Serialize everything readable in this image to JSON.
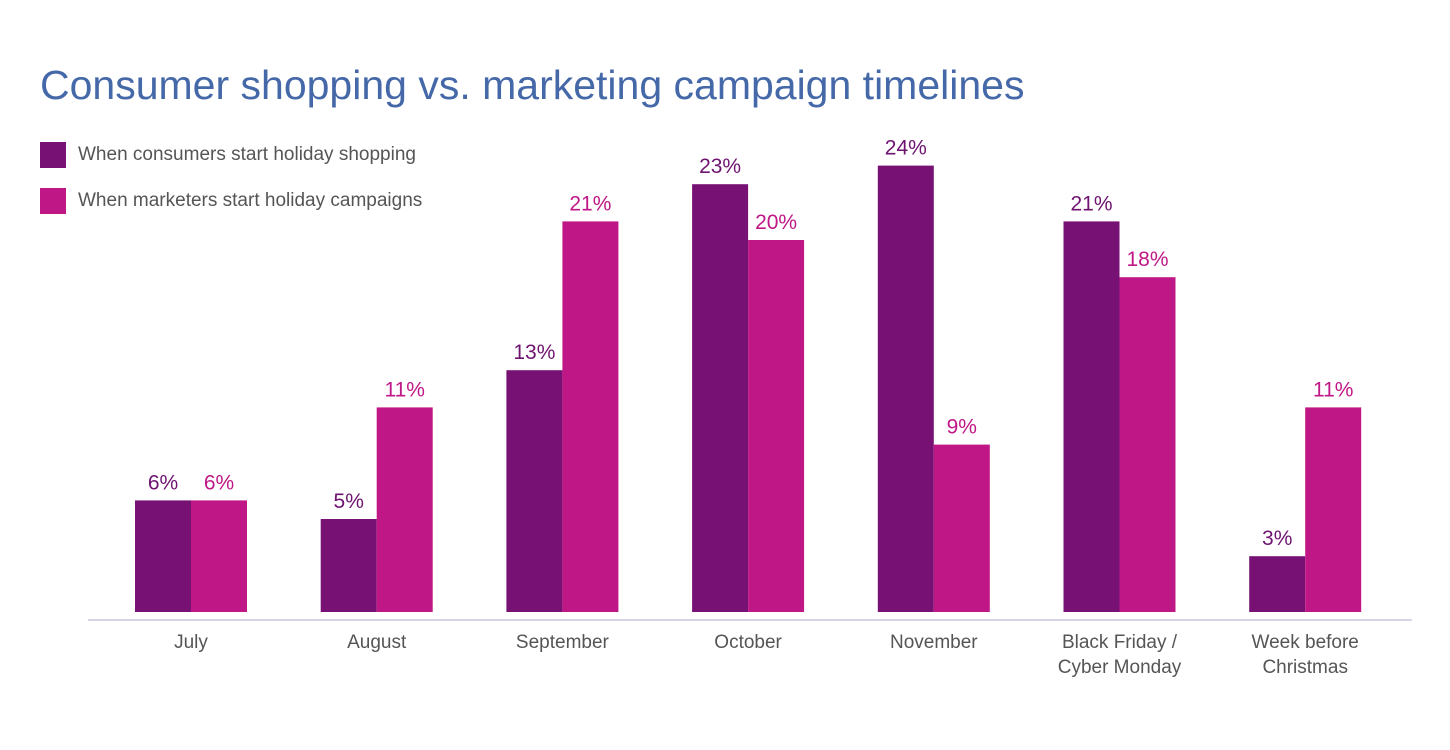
{
  "chart_data": {
    "type": "bar",
    "title": "Consumer shopping vs. marketing campaign timelines",
    "xlabel": "",
    "ylabel": "",
    "ylim": [
      0,
      28
    ],
    "grid": false,
    "legend_position": "top-left",
    "categories": [
      "July",
      "August",
      "September",
      "October",
      "November",
      "Black Friday / Cyber Monday",
      "Week before Christmas"
    ],
    "category_lines": [
      [
        "July"
      ],
      [
        "August"
      ],
      [
        "September"
      ],
      [
        "October"
      ],
      [
        "November"
      ],
      [
        "Black Friday /",
        "Cyber Monday"
      ],
      [
        "Week before",
        "Christmas"
      ]
    ],
    "series": [
      {
        "name": "When consumers start holiday shopping",
        "color": "#771174",
        "label_color": "#6e1370",
        "values": [
          6,
          5,
          13,
          23,
          24,
          21,
          3
        ],
        "labels": [
          "6%",
          "5%",
          "13%",
          "23%",
          "24%",
          "21%",
          "3%"
        ]
      },
      {
        "name": "When marketers start holiday campaigns",
        "color": "#c01786",
        "label_color": "#c01786",
        "values": [
          6,
          11,
          21,
          20,
          9,
          18,
          11
        ],
        "labels": [
          "6%",
          "11%",
          "21%",
          "20%",
          "9%",
          "18%",
          "11%"
        ]
      }
    ]
  }
}
